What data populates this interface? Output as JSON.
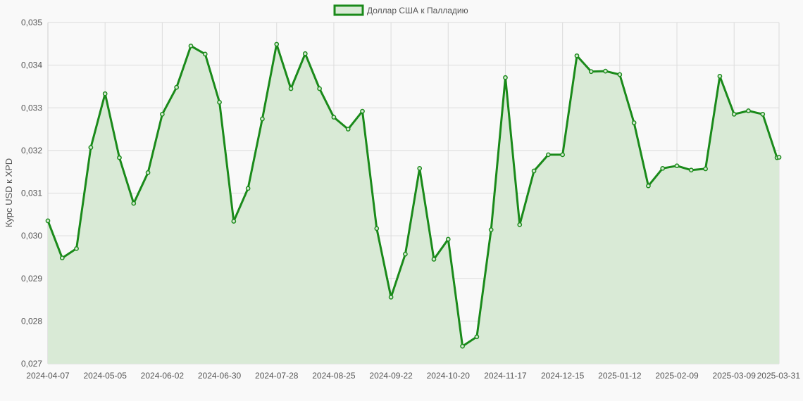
{
  "chart_data": {
    "type": "line",
    "legend": {
      "label": "Доллар США к Палладию",
      "position": "top-center"
    },
    "ylabel": "Курс USD к XPD",
    "xlabel": "",
    "ylim": [
      0.027,
      0.035
    ],
    "y_ticks": [
      "0,027",
      "0,028",
      "0,029",
      "0,030",
      "0,031",
      "0,032",
      "0,033",
      "0,034",
      "0,035"
    ],
    "x_ticks": [
      "2024-04-07",
      "2024-05-05",
      "2024-06-02",
      "2024-06-30",
      "2024-07-28",
      "2024-08-25",
      "2024-09-22",
      "2024-10-20",
      "2024-11-17",
      "2024-12-15",
      "2025-01-12",
      "2025-02-09",
      "2025-03-09",
      "2025-03-31"
    ],
    "grid": true,
    "colors": {
      "line": "#1a8a1a",
      "fill": "#d9ead6",
      "background": "#f9f9f9"
    },
    "series": [
      {
        "name": "Доллар США к Палладию",
        "x": [
          "2024-04-07",
          "2024-04-14",
          "2024-04-21",
          "2024-04-28",
          "2024-05-05",
          "2024-05-12",
          "2024-05-19",
          "2024-05-26",
          "2024-06-02",
          "2024-06-09",
          "2024-06-16",
          "2024-06-23",
          "2024-06-30",
          "2024-07-07",
          "2024-07-14",
          "2024-07-21",
          "2024-07-28",
          "2024-08-04",
          "2024-08-11",
          "2024-08-18",
          "2024-08-25",
          "2024-09-01",
          "2024-09-08",
          "2024-09-15",
          "2024-09-22",
          "2024-09-29",
          "2024-10-06",
          "2024-10-13",
          "2024-10-20",
          "2024-10-27",
          "2024-11-03",
          "2024-11-10",
          "2024-11-17",
          "2024-11-24",
          "2024-12-01",
          "2024-12-08",
          "2024-12-15",
          "2024-12-22",
          "2024-12-29",
          "2025-01-05",
          "2025-01-12",
          "2025-01-19",
          "2025-01-26",
          "2025-02-02",
          "2025-02-09",
          "2025-02-16",
          "2025-02-23",
          "2025-03-02",
          "2025-03-09",
          "2025-03-16",
          "2025-03-23",
          "2025-03-30",
          "2025-03-31"
        ],
        "values": [
          0.03035,
          0.02948,
          0.0297,
          0.03207,
          0.03333,
          0.03183,
          0.03076,
          0.03148,
          0.03285,
          0.03348,
          0.03445,
          0.03426,
          0.03313,
          0.03034,
          0.03111,
          0.03274,
          0.03449,
          0.03345,
          0.03427,
          0.03345,
          0.03278,
          0.0325,
          0.03292,
          0.03017,
          0.02856,
          0.02957,
          0.03158,
          0.02945,
          0.02992,
          0.02741,
          0.02763,
          0.03014,
          0.03371,
          0.03026,
          0.03152,
          0.0319,
          0.0319,
          0.03422,
          0.03385,
          0.03386,
          0.03378,
          0.03265,
          0.03117,
          0.03158,
          0.03164,
          0.03154,
          0.03157,
          0.03374,
          0.03285,
          0.03293,
          0.03285,
          0.03183,
          0.03184
        ]
      }
    ]
  }
}
